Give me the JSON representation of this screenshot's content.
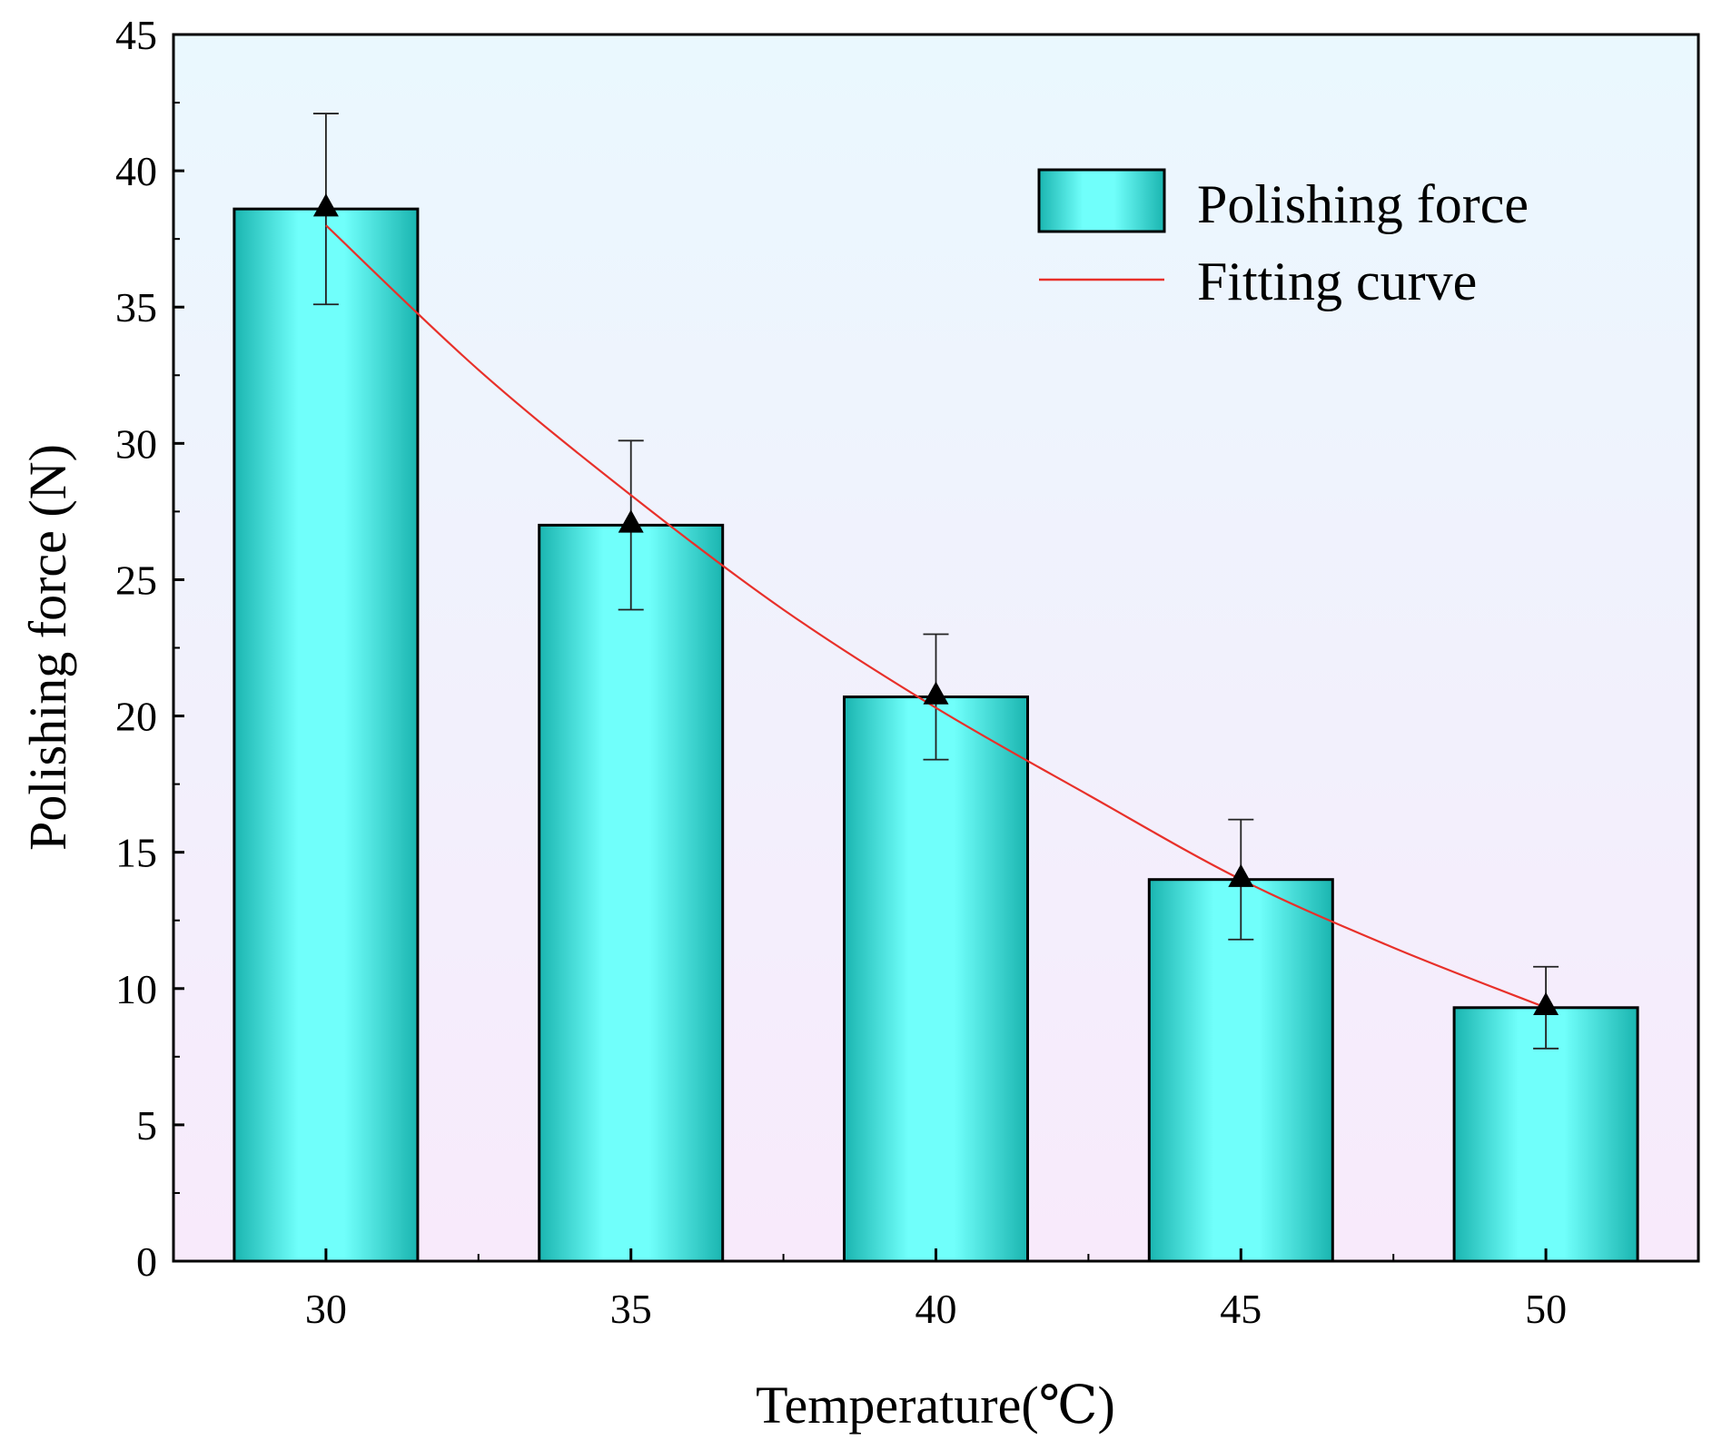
{
  "chart_data": {
    "type": "bar",
    "title": "",
    "xlabel": "Temperature(℃)",
    "ylabel": "Polishing force (N)",
    "categories": [
      "30",
      "35",
      "40",
      "45",
      "50"
    ],
    "x": [
      30,
      35,
      40,
      45,
      50
    ],
    "ylim": [
      0,
      45
    ],
    "xlim": [
      27.5,
      52.5
    ],
    "y_ticks": [
      0,
      5,
      10,
      15,
      20,
      25,
      30,
      35,
      40,
      45
    ],
    "y_tick_labels": [
      "0",
      "5",
      "10",
      "15",
      "20",
      "25",
      "30",
      "35",
      "40",
      "45"
    ],
    "grid": false,
    "legend_position": "top-right",
    "series": [
      {
        "name": "Polishing force",
        "kind": "bar",
        "values": [
          38.6,
          27.0,
          20.7,
          14.0,
          9.3
        ],
        "markers": [
          38.7,
          27.1,
          20.8,
          14.1,
          9.4
        ],
        "error_low": [
          35.1,
          23.9,
          18.4,
          11.8,
          7.8
        ],
        "error_high": [
          42.1,
          30.1,
          23.0,
          16.2,
          10.8
        ],
        "color": "#1ab5b0",
        "highlight": "#70fffb"
      },
      {
        "name": "Fitting curve",
        "kind": "line",
        "x": [
          30,
          32.5,
          35,
          37.5,
          40,
          42.5,
          45,
          47.5,
          50
        ],
        "values": [
          38.0,
          32.7,
          28.1,
          23.9,
          20.3,
          17.1,
          14.0,
          11.5,
          9.3
        ],
        "color": "#e8302a"
      }
    ],
    "background_gradient": [
      "#eaf8fe",
      "#f8eafb"
    ]
  }
}
